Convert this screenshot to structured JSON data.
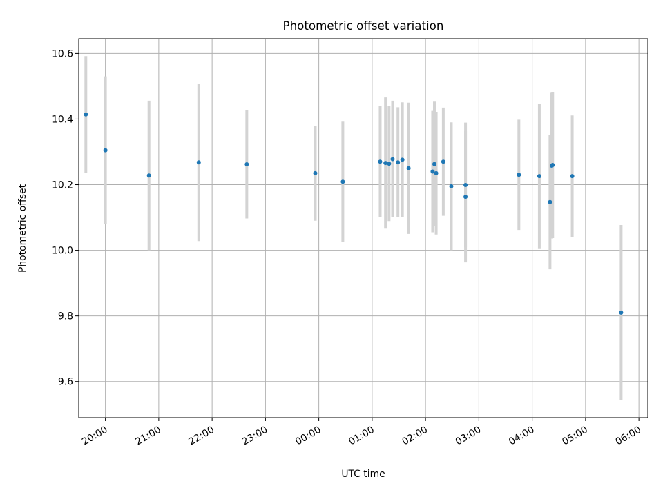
{
  "chart_data": {
    "type": "scatter",
    "title": "Photometric offset variation",
    "xlabel": "UTC time",
    "ylabel": "Photometric offset",
    "x_axis_kind": "time",
    "x_tick_labels": [
      "20:00",
      "21:00",
      "22:00",
      "23:00",
      "00:00",
      "01:00",
      "02:00",
      "03:00",
      "04:00",
      "05:00",
      "06:00"
    ],
    "y_tick_labels": [
      "9.6",
      "9.8",
      "10.0",
      "10.2",
      "10.4",
      "10.6"
    ],
    "y_ticks": [
      9.6,
      9.8,
      10.0,
      10.2,
      10.4,
      10.6
    ],
    "ylim": [
      9.49,
      10.645
    ],
    "xlim": [
      "19:30",
      "06:10"
    ],
    "grid": true,
    "series": [
      {
        "color": "#1f77b4",
        "errorbar_color": "#d3d3d3",
        "points": [
          {
            "x": "19:38",
            "y": 10.414,
            "err": 0.178
          },
          {
            "x": "20:00",
            "y": 10.305,
            "err": 0.225
          },
          {
            "x": "20:49",
            "y": 10.228,
            "err": 0.228
          },
          {
            "x": "21:45",
            "y": 10.268,
            "err": 0.24
          },
          {
            "x": "22:39",
            "y": 10.262,
            "err": 0.165
          },
          {
            "x": "23:56",
            "y": 10.235,
            "err": 0.145
          },
          {
            "x": "00:27",
            "y": 10.209,
            "err": 0.183
          },
          {
            "x": "01:09",
            "y": 10.27,
            "err": 0.17
          },
          {
            "x": "01:15",
            "y": 10.266,
            "err": 0.2
          },
          {
            "x": "01:19",
            "y": 10.264,
            "err": 0.175
          },
          {
            "x": "01:23",
            "y": 10.278,
            "err": 0.178
          },
          {
            "x": "01:29",
            "y": 10.268,
            "err": 0.168
          },
          {
            "x": "01:34",
            "y": 10.276,
            "err": 0.175
          },
          {
            "x": "01:41",
            "y": 10.25,
            "err": 0.2
          },
          {
            "x": "02:08",
            "y": 10.24,
            "err": 0.185
          },
          {
            "x": "02:10",
            "y": 10.263,
            "err": 0.19
          },
          {
            "x": "02:12",
            "y": 10.235,
            "err": 0.187
          },
          {
            "x": "02:20",
            "y": 10.27,
            "err": 0.165
          },
          {
            "x": "02:29",
            "y": 10.195,
            "err": 0.195
          },
          {
            "x": "02:45",
            "y": 10.199,
            "err": 0.19
          },
          {
            "x": "02:45",
            "y": 10.163,
            "err": 0.2
          },
          {
            "x": "03:45",
            "y": 10.23,
            "err": 0.168
          },
          {
            "x": "04:08",
            "y": 10.226,
            "err": 0.22
          },
          {
            "x": "04:20",
            "y": 10.147,
            "err": 0.205
          },
          {
            "x": "04:22",
            "y": 10.258,
            "err": 0.222
          },
          {
            "x": "04:23",
            "y": 10.26,
            "err": 0.223
          },
          {
            "x": "04:45",
            "y": 10.226,
            "err": 0.185
          },
          {
            "x": "05:40",
            "y": 9.81,
            "err": 0.267
          }
        ]
      }
    ]
  }
}
